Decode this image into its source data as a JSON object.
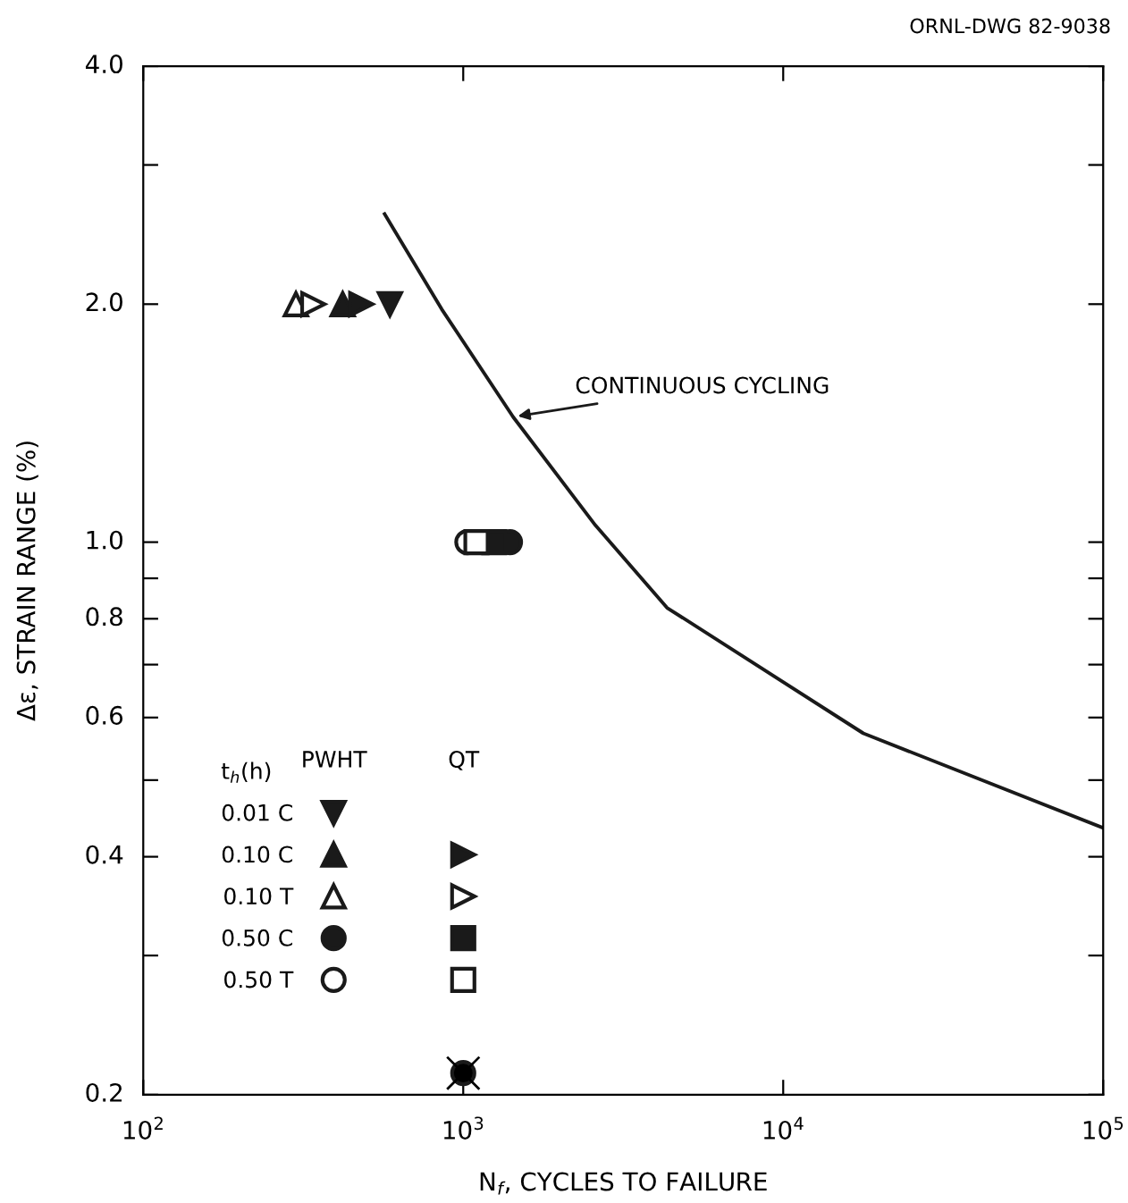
{
  "chart_data": {
    "type": "scatter",
    "xlabel": "N$_{f}$, CYCLES TO FAILURE",
    "ylabel": "Δε, STRAIN RANGE (%)",
    "legend_title": "t$_{h}$(h)",
    "log": "xy",
    "legend": "bottom left",
    "grid": false,
    "xlim": [
      100,
      100000
    ],
    "xticks": [
      {
        "value": 100,
        "label": "10$^{2}$"
      },
      {
        "value": 1000,
        "label": "10$^{3}$"
      },
      {
        "value": 10000,
        "label": "10$^{4}$"
      },
      {
        "value": 100000,
        "label": "10$^{5}$"
      }
    ],
    "ylim": [
      0.2,
      4.0
    ],
    "yticks": [
      {
        "value": 0.2,
        "label": "0.2"
      },
      {
        "value": 0.3,
        "label": null
      },
      {
        "value": 0.4,
        "label": "0.4"
      },
      {
        "value": 0.5,
        "label": null
      },
      {
        "value": 0.6,
        "label": "0.6"
      },
      {
        "value": 0.7,
        "label": null
      },
      {
        "value": 0.8,
        "label": "0.8"
      },
      {
        "value": 0.9,
        "label": null
      },
      {
        "value": 1.0,
        "label": "1.0"
      },
      {
        "value": 2.0,
        "label": "2.0"
      },
      {
        "value": 3.0,
        "label": null
      },
      {
        "value": 4.0,
        "label": "4.0"
      }
    ],
    "annotations": [
      "PWHT",
      "QT",
      {
        "text": "CONTINUOUS CYCLING",
        "x": 1430,
        "y": 1.44
      },
      "ORNL-DWG 82-9038"
    ],
    "series": [
      {
        "name": "0.01 C",
        "color": "#1a1a1a",
        "marker": "triangle-down",
        "x": [
          590
        ],
        "values": [
          2.0
        ]
      },
      {
        "name": "0.10 C",
        "color": "#1a1a1a",
        "marker": "triangle",
        "x": [
          420
        ],
        "values": [
          2.0
        ]
      },
      {
        "name": "0.10 T",
        "color": "#ffffff",
        "marker": "triangle",
        "x": [
          300
        ],
        "values": [
          2.0
        ]
      },
      {
        "name": "0.50 C",
        "color": "#1a1a1a",
        "marker": "circle",
        "x": [
          1400
        ],
        "values": [
          1.0
        ]
      },
      {
        "name": "0.50 T",
        "color": "#ffffff",
        "marker": "circle",
        "x": [
          1030
        ],
        "values": [
          1.0
        ]
      },
      {
        "color": "#1a1a1a",
        "marker": "triangle-right",
        "x": [
          480
        ],
        "values": [
          2.0
        ]
      },
      {
        "color": "#ffffff",
        "marker": "triangle-right",
        "x": [
          340
        ],
        "values": [
          2.0
        ]
      },
      {
        "color": "#1a1a1a",
        "marker": "square",
        "x": [
          1250
        ],
        "values": [
          1.0
        ]
      },
      {
        "color": "#ffffff",
        "marker": "square",
        "x": [
          1100
        ],
        "values": [
          1.0
        ]
      },
      {
        "color": "#000000",
        "marker": "circle",
        "x": [
          1000
        ],
        "values": [
          0.213
        ]
      },
      {
        "color": "#000000",
        "marker": "cross",
        "x": [
          1000
        ],
        "values": [
          0.213
        ]
      },
      {
        "type": "line",
        "color": "#1a1a1a",
        "marker": "none",
        "line_style": "solid",
        "x": [
          568,
          857,
          1432,
          2590,
          4335,
          17800,
          100000
        ],
        "values": [
          2.6,
          1.97,
          1.44,
          1.05,
          0.826,
          0.573,
          0.435
        ]
      }
    ]
  }
}
